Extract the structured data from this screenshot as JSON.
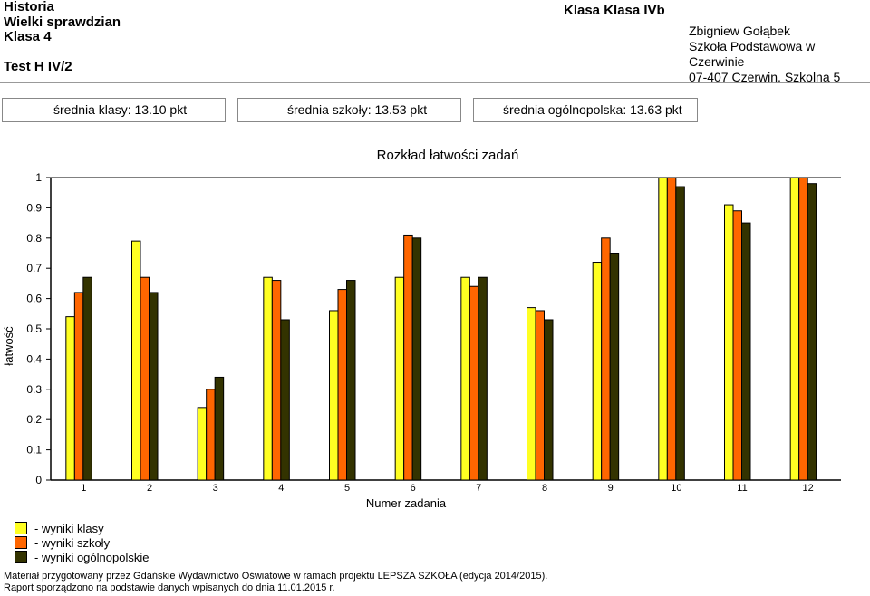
{
  "header": {
    "subject": "Historia",
    "exam": "Wielki sprawdzian",
    "grade": "Klasa 4",
    "test": "Test H IV/2",
    "class_title": "Klasa Klasa IVb",
    "teacher": "Zbigniew Gołąbek",
    "school": "Szkoła Podstawowa w Czerwinie",
    "address": "07-407 Czerwin, Szkolna 5"
  },
  "stats": {
    "class_avg": "średnia klasy: 13.10 pkt",
    "school_avg": "średnia szkoły: 13.53 pkt",
    "national_avg": "średnia ogólnopolska: 13.63 pkt"
  },
  "chart_data": {
    "type": "bar",
    "title": "Rozkład łatwości zadań",
    "xlabel": "Numer zadania",
    "ylabel": "łatwość",
    "ylim": [
      0,
      1
    ],
    "yticks": [
      "0",
      "0.1",
      "0.2",
      "0.3",
      "0.4",
      "0.5",
      "0.6",
      "0.7",
      "0.8",
      "0.9",
      "1"
    ],
    "categories": [
      "1",
      "2",
      "3",
      "4",
      "5",
      "6",
      "7",
      "8",
      "9",
      "10",
      "11",
      "12"
    ],
    "grid": false,
    "legend_position": "bottom-left",
    "series": [
      {
        "name": "- wyniki klasy",
        "color": "#ffff22",
        "values": [
          0.54,
          0.79,
          0.24,
          0.67,
          0.56,
          0.67,
          0.67,
          0.57,
          0.72,
          1.0,
          0.91,
          1.0
        ]
      },
      {
        "name": "- wyniki szkoły",
        "color": "#ff6600",
        "values": [
          0.62,
          0.67,
          0.3,
          0.66,
          0.63,
          0.81,
          0.64,
          0.56,
          0.8,
          1.0,
          0.89,
          1.0
        ]
      },
      {
        "name": "- wyniki ogólnopolskie",
        "color": "#333300",
        "values": [
          0.67,
          0.62,
          0.34,
          0.53,
          0.66,
          0.8,
          0.67,
          0.53,
          0.75,
          0.97,
          0.85,
          0.98
        ]
      }
    ]
  },
  "footer": {
    "line1": "Materiał przygotowany przez Gdańskie Wydawnictwo Oświatowe w ramach projektu LEPSZA SZKOŁA (edycja 2014/2015).",
    "line2": "Raport sporządzono na podstawie danych wpisanych do dnia 11.01.2015 r."
  }
}
